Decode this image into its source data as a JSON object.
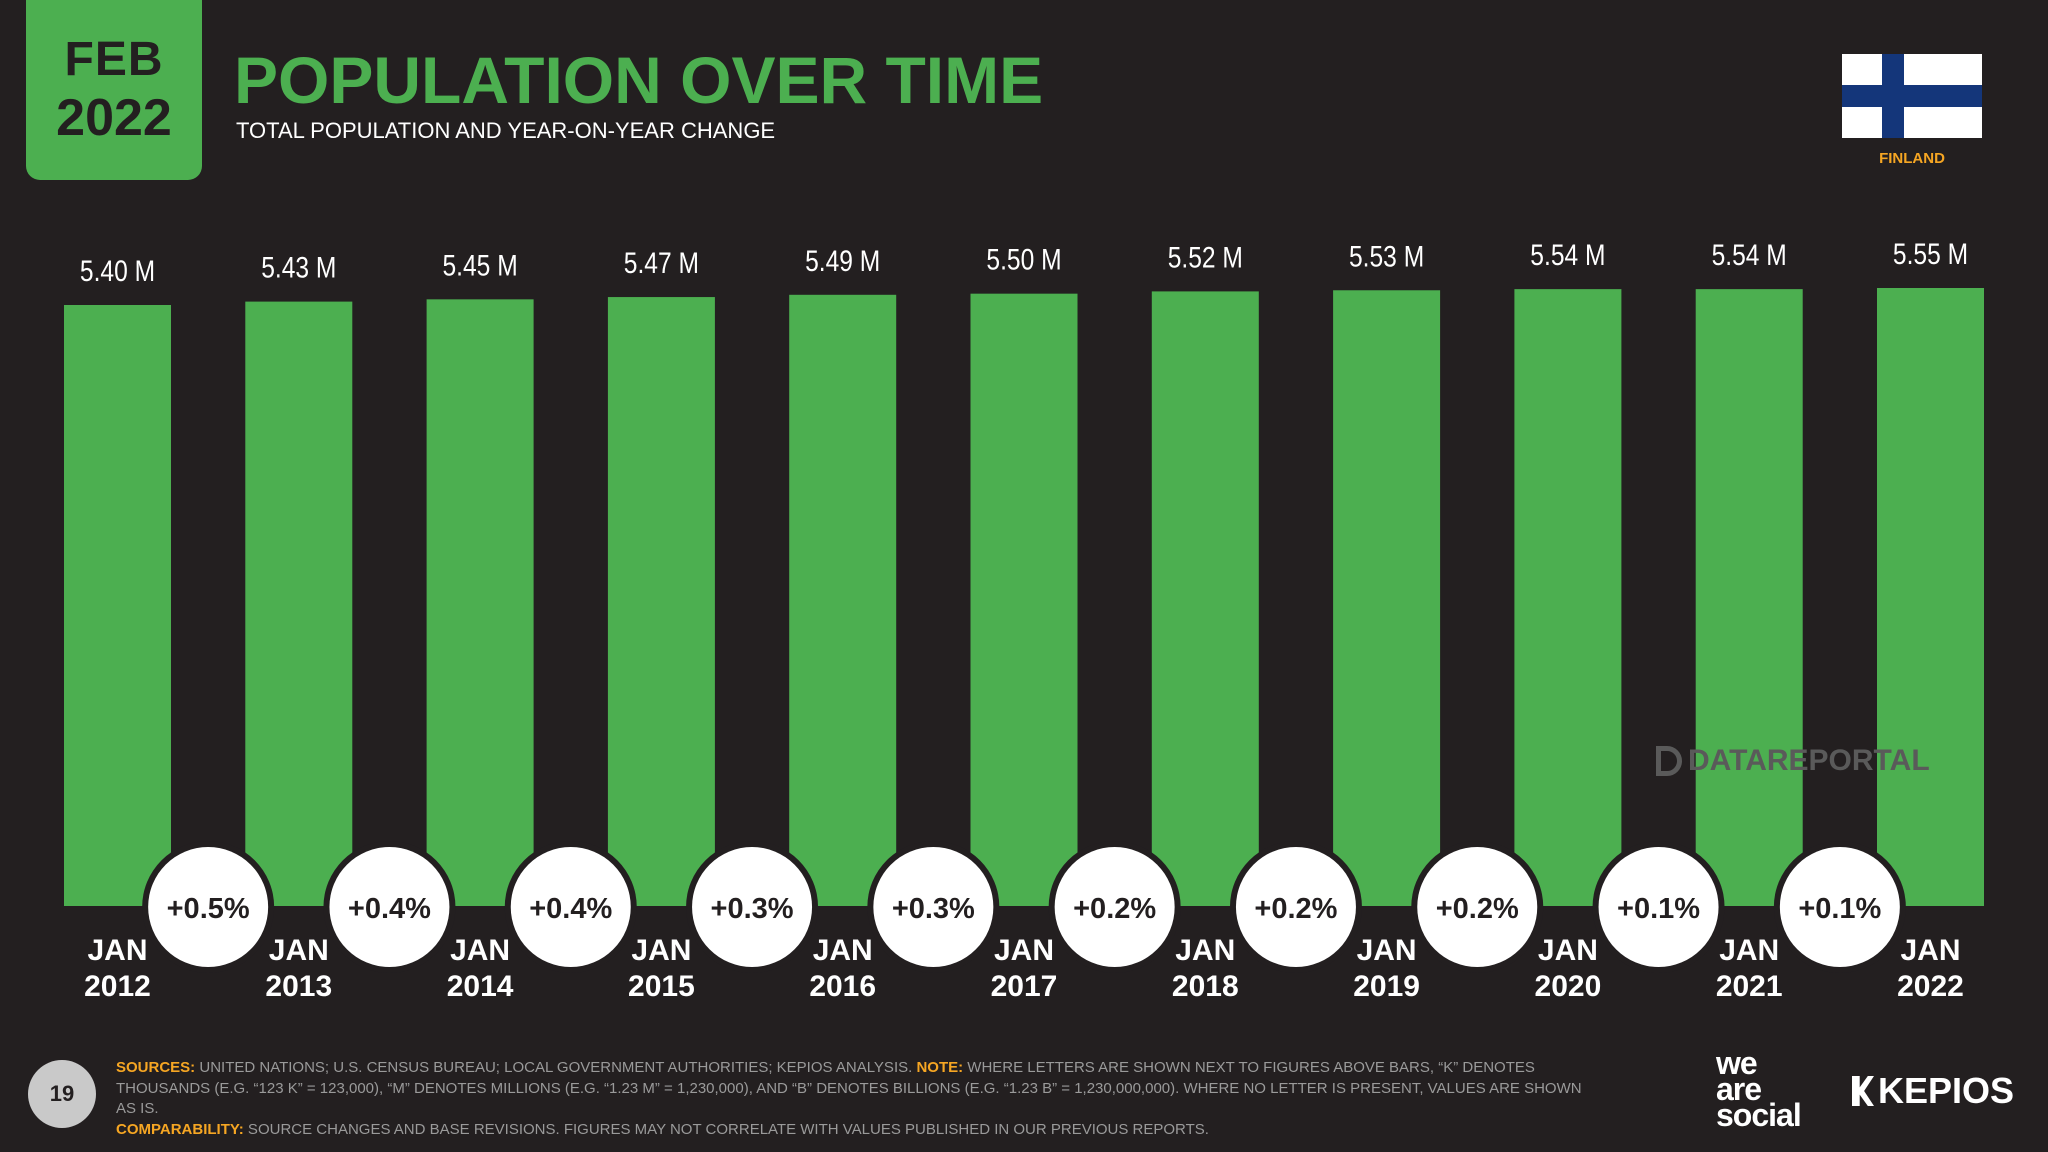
{
  "badge": {
    "month": "FEB",
    "year": "2022"
  },
  "header": {
    "title": "POPULATION OVER TIME",
    "subtitle": "TOTAL POPULATION AND YEAR-ON-YEAR CHANGE"
  },
  "country": {
    "name": "FINLAND",
    "flag_icon": "finland-flag-icon"
  },
  "colors": {
    "background": "#231f20",
    "bar": "#4caf50",
    "accent_orange": "#f6a623",
    "bubble": "#ffffff"
  },
  "chart_data": {
    "type": "bar",
    "title": "POPULATION OVER TIME",
    "categories": [
      [
        "JAN",
        "2012"
      ],
      [
        "JAN",
        "2013"
      ],
      [
        "JAN",
        "2014"
      ],
      [
        "JAN",
        "2015"
      ],
      [
        "JAN",
        "2016"
      ],
      [
        "JAN",
        "2017"
      ],
      [
        "JAN",
        "2018"
      ],
      [
        "JAN",
        "2019"
      ],
      [
        "JAN",
        "2020"
      ],
      [
        "JAN",
        "2021"
      ],
      [
        "JAN",
        "2022"
      ]
    ],
    "values": [
      5.4,
      5.43,
      5.45,
      5.47,
      5.49,
      5.5,
      5.52,
      5.53,
      5.54,
      5.54,
      5.55
    ],
    "value_labels": [
      "5.40 M",
      "5.43 M",
      "5.45 M",
      "5.47 M",
      "5.49 M",
      "5.50 M",
      "5.52 M",
      "5.53 M",
      "5.54 M",
      "5.54 M",
      "5.55 M"
    ],
    "yoy_change": [
      "+0.5%",
      "+0.4%",
      "+0.4%",
      "+0.3%",
      "+0.3%",
      "+0.2%",
      "+0.2%",
      "+0.2%",
      "+0.1%",
      "+0.1%"
    ],
    "unit": "M",
    "grid": false,
    "legend": "none"
  },
  "watermark": "DATAREPORTAL",
  "page_number": "19",
  "footer": {
    "sources_label": "SOURCES:",
    "sources_text": " UNITED NATIONS; U.S. CENSUS BUREAU; LOCAL GOVERNMENT AUTHORITIES; KEPIOS ANALYSIS. ",
    "note_label": "NOTE:",
    "note_text": " WHERE LETTERS ARE SHOWN NEXT TO FIGURES ABOVE BARS, “K” DENOTES THOUSANDS (E.G. “123 K” = 123,000), “M” DENOTES MILLIONS (E.G. “1.23 M” = 1,230,000), AND “B” DENOTES BILLIONS (E.G. “1.23 B” = 1,230,000,000). WHERE NO LETTER IS PRESENT, VALUES ARE SHOWN AS IS.",
    "comparability_label": "COMPARABILITY:",
    "comparability_text": " SOURCE CHANGES AND BASE REVISIONS. FIGURES MAY NOT CORRELATE WITH VALUES PUBLISHED IN OUR PREVIOUS REPORTS."
  },
  "logos": {
    "we_are_social": [
      "we",
      "are",
      "social"
    ],
    "kepios": "KEPIOS"
  }
}
